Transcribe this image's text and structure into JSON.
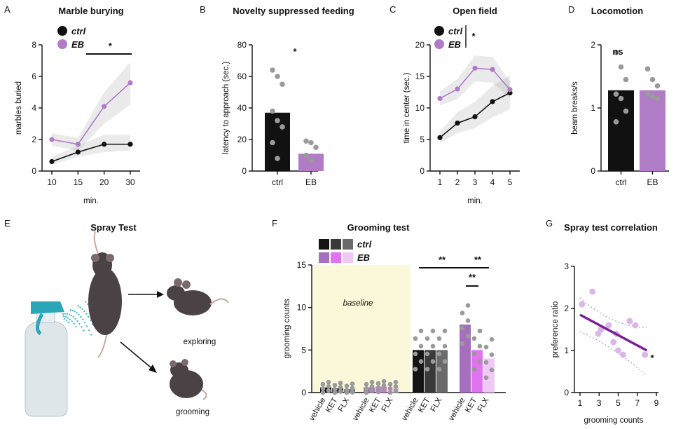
{
  "figure": {
    "panels": [
      "A",
      "B",
      "C",
      "D",
      "E",
      "F",
      "G"
    ]
  },
  "colors": {
    "ctrl": "#111111",
    "eb": "#b07cc6",
    "eb_dark": "#7a1f9a",
    "grey_dot": "#9a9a9a",
    "baseline_bg": "#fbf8d9"
  },
  "spray_test": {
    "title": "Spray Test",
    "label_exploring": "exploring",
    "label_grooming": "grooming",
    "icons": [
      "spray-bottle-icon",
      "mouse-sprayed-icon",
      "mouse-exploring-icon",
      "mouse-grooming-icon"
    ]
  },
  "chart_data": [
    {
      "panel": "A",
      "type": "line",
      "title": "Marble burying",
      "xlabel": "min.",
      "ylabel": "marbles buried",
      "categories": [
        "10",
        "15",
        "20",
        "30"
      ],
      "ylim": [
        0,
        8
      ],
      "yticks": [
        "0",
        "2",
        "4",
        "6",
        "8"
      ],
      "series": [
        {
          "name": "ctrl",
          "values": [
            0.6,
            1.2,
            1.7,
            1.7
          ],
          "band_low": [
            0.4,
            0.9,
            1.2,
            1.3
          ],
          "band_high": [
            0.9,
            1.6,
            2.3,
            2.3
          ]
        },
        {
          "name": "EB",
          "values": [
            2.0,
            1.7,
            4.1,
            5.6
          ],
          "band_low": [
            1.6,
            1.3,
            3.0,
            4.2
          ],
          "band_high": [
            2.4,
            2.1,
            5.0,
            6.9
          ]
        }
      ],
      "significance": "*"
    },
    {
      "panel": "B",
      "type": "bar",
      "title": "Novelty suppressed feeding",
      "ylabel": "latency to approach (sec.)",
      "categories": [
        "ctrl",
        "EB"
      ],
      "values": [
        37,
        11
      ],
      "ylim": [
        0,
        80
      ],
      "yticks": [
        "0",
        "20",
        "40",
        "60",
        "80"
      ],
      "points": [
        [
          64,
          60,
          55,
          38,
          32,
          28,
          18,
          8
        ],
        [
          19,
          18,
          15,
          10,
          7
        ]
      ],
      "significance": "*"
    },
    {
      "panel": "C",
      "type": "line",
      "title": "Open field",
      "xlabel": "min.",
      "ylabel": "time in center (sec.)",
      "categories": [
        "1",
        "2",
        "3",
        "4",
        "5"
      ],
      "ylim": [
        0,
        20
      ],
      "yticks": [
        "0",
        "5",
        "10",
        "15",
        "20"
      ],
      "series": [
        {
          "name": "ctrl",
          "values": [
            5.3,
            7.6,
            8.6,
            11.0,
            12.4
          ],
          "band_low": [
            4.5,
            6.0,
            6.8,
            8.5,
            9.8
          ],
          "band_high": [
            6.3,
            9.3,
            11.0,
            13.5,
            15.2
          ]
        },
        {
          "name": "EB",
          "values": [
            11.5,
            13.0,
            16.3,
            16.1,
            12.9
          ],
          "band_low": [
            10.4,
            11.4,
            14.2,
            14.0,
            11.6
          ],
          "band_high": [
            12.6,
            14.6,
            18.3,
            18.1,
            14.2
          ]
        }
      ],
      "significance": "*"
    },
    {
      "panel": "D",
      "type": "bar",
      "title": "Locomotion",
      "ylabel": "beam breaks/s",
      "categories": [
        "ctrl",
        "EB"
      ],
      "values": [
        1.28,
        1.28
      ],
      "ylim": [
        0,
        2
      ],
      "yticks": [
        "0",
        "1",
        "2"
      ],
      "points": [
        [
          1.88,
          1.65,
          1.45,
          1.22,
          1.15,
          0.95,
          0.78
        ],
        [
          1.62,
          1.45,
          1.35,
          1.22,
          1.18,
          1.15
        ]
      ],
      "significance": "ns"
    },
    {
      "panel": "F",
      "type": "bar",
      "title": "Grooming test",
      "ylabel": "grooming counts",
      "annotation": "baseline",
      "legend": [
        "ctrl",
        "EB"
      ],
      "groups": [
        {
          "name": "ctrl-baseline",
          "labels": [
            "vehicle",
            "KET",
            "FLX"
          ],
          "values": [
            0.6,
            0.5,
            0.4
          ]
        },
        {
          "name": "EB-baseline",
          "labels": [
            "vehicle",
            "KET",
            "FLX"
          ],
          "values": [
            0.6,
            0.7,
            0.6
          ]
        },
        {
          "name": "ctrl",
          "labels": [
            "vehicle",
            "KET",
            "FLX"
          ],
          "values": [
            5.0,
            5.0,
            5.0
          ]
        },
        {
          "name": "EB",
          "labels": [
            "vehicle",
            "KET",
            "FLX"
          ],
          "values": [
            8.0,
            5.0,
            4.0
          ]
        }
      ],
      "ylim": [
        0,
        15
      ],
      "yticks": [
        "0",
        "5",
        "10",
        "15"
      ],
      "significance": [
        "**",
        "**",
        "**"
      ]
    },
    {
      "panel": "G",
      "type": "scatter",
      "title": "Spray test correlation",
      "xlabel": "grooming counts",
      "ylabel": "preference ratio",
      "xticks": [
        "1",
        "3",
        "5",
        "7",
        "9"
      ],
      "yticks": [
        "0",
        "1",
        "2",
        "3"
      ],
      "xlim": [
        1,
        9
      ],
      "ylim": [
        0,
        3
      ],
      "x": [
        1.2,
        2.3,
        2.9,
        3.2,
        4.0,
        4.5,
        4.8,
        5.0,
        5.5,
        6.2,
        6.8,
        7.8
      ],
      "y": [
        2.1,
        2.4,
        1.4,
        1.5,
        1.6,
        1.2,
        1.4,
        1.0,
        0.9,
        1.7,
        1.6,
        0.9
      ],
      "fit": [
        [
          1,
          1.85
        ],
        [
          8,
          1.0
        ]
      ],
      "significance": "*"
    }
  ]
}
